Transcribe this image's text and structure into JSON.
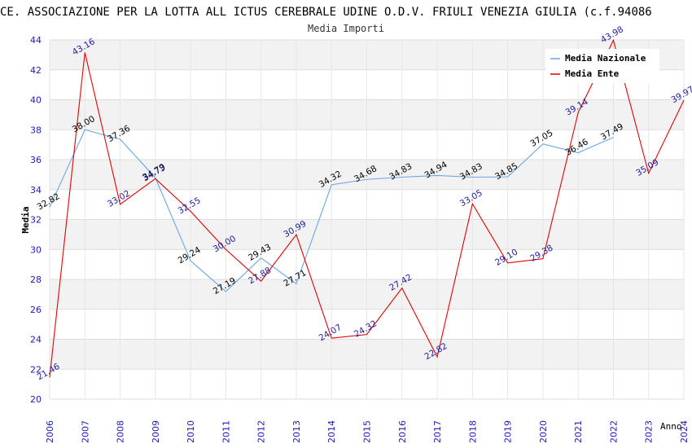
{
  "chart_data": {
    "type": "line",
    "title": "CE. ASSOCIAZIONE PER LA LOTTA ALL ICTUS CEREBRALE UDINE O.D.V. FRIULI VENEZIA GIULIA (c.f.94086",
    "subtitle": "Media Importi",
    "xlabel": "Anno",
    "ylabel": "Media",
    "ylim": [
      20,
      44
    ],
    "yticks": [
      "20",
      "22",
      "24",
      "26",
      "28",
      "30",
      "32",
      "34",
      "36",
      "38",
      "40",
      "42",
      "44"
    ],
    "categories": [
      "2006",
      "2007",
      "2008",
      "2009",
      "2010",
      "2011",
      "2012",
      "2013",
      "2014",
      "2015",
      "2016",
      "2017",
      "2018",
      "2019",
      "2020",
      "2021",
      "2022",
      "2023",
      "2024"
    ],
    "legend_position": "top-right",
    "series": [
      {
        "name": "Media Nazionale",
        "color": "#6aa6e0",
        "label_color": "#000000",
        "values": [
          32.82,
          38.0,
          37.36,
          34.79,
          29.24,
          27.19,
          29.43,
          27.71,
          34.32,
          34.68,
          34.83,
          34.94,
          34.83,
          34.85,
          37.05,
          36.46,
          37.49,
          null,
          null
        ],
        "labels": [
          "32.82",
          "38.00",
          "37.36",
          "34.79",
          "29.24",
          "27.19",
          "29.43",
          "27.71",
          "34.32",
          "34.68",
          "34.83",
          "34.94",
          "34.83",
          "34.85",
          "37.05",
          "36.46",
          "37.49",
          null,
          null
        ]
      },
      {
        "name": "Media Ente",
        "color": "#dd0000",
        "label_color": "#1c1c9a",
        "values": [
          21.46,
          43.16,
          33.02,
          34.73,
          32.55,
          30.0,
          27.88,
          30.99,
          24.07,
          24.32,
          27.42,
          22.82,
          33.05,
          29.1,
          29.38,
          39.14,
          43.98,
          35.09,
          39.97
        ],
        "labels": [
          "21.46",
          "43.16",
          "33.02",
          "34.73",
          "32.55",
          "30.00",
          "27.88",
          "30.99",
          "24.07",
          "24.32",
          "27.42",
          "22.82",
          "33.05",
          "29.10",
          "29.38",
          "39.14",
          "43.98",
          "35.09",
          "39.97"
        ]
      }
    ]
  }
}
